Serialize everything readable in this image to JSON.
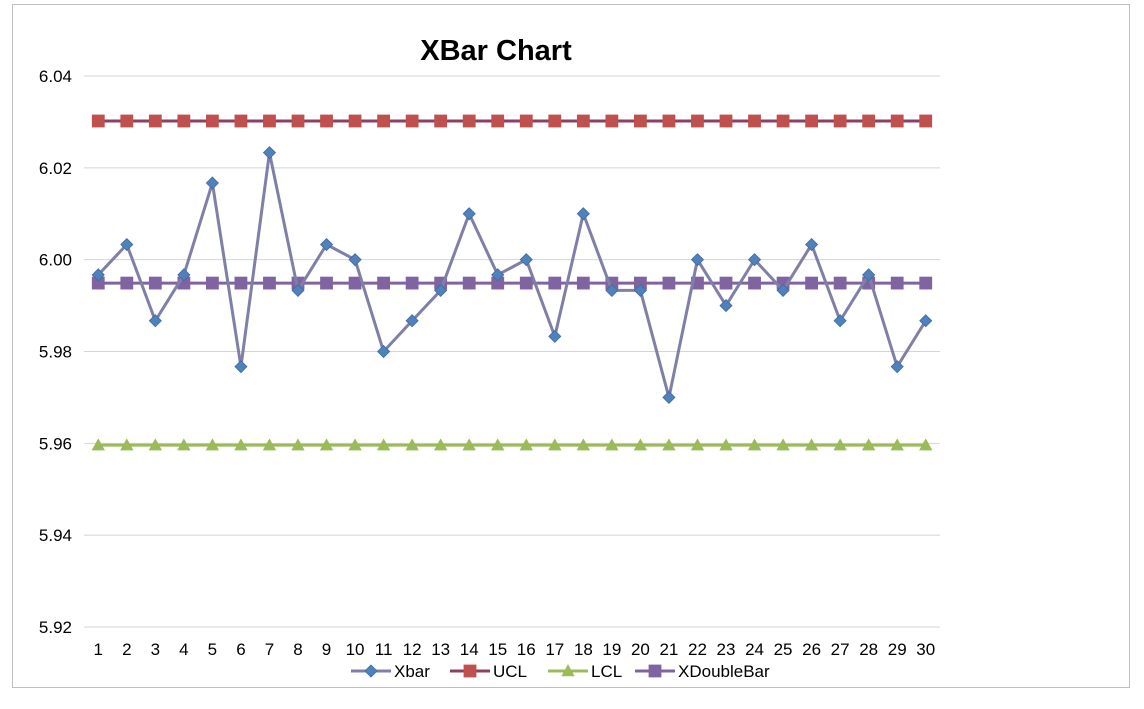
{
  "chart_data": {
    "type": "line",
    "title": "XBar Chart",
    "xlabel": "",
    "ylabel": "",
    "categories": [
      "1",
      "2",
      "3",
      "4",
      "5",
      "6",
      "7",
      "8",
      "9",
      "10",
      "11",
      "12",
      "13",
      "14",
      "15",
      "16",
      "17",
      "18",
      "19",
      "20",
      "21",
      "22",
      "23",
      "24",
      "25",
      "26",
      "27",
      "28",
      "29",
      "30"
    ],
    "ylim": [
      5.92,
      6.04
    ],
    "yticks": [
      "5.92",
      "5.94",
      "5.96",
      "5.98",
      "6.00",
      "6.02",
      "6.04"
    ],
    "grid": "horizontal",
    "legend_position": "bottom",
    "series": [
      {
        "name": "Xbar",
        "marker": "diamond",
        "color": "#4f81bd",
        "line_color": "#7f7fa8",
        "values": [
          5.9967,
          6.0033,
          5.9867,
          5.9967,
          6.0167,
          5.9767,
          6.0233,
          5.9933,
          6.0033,
          6.0,
          5.98,
          5.9867,
          5.9933,
          6.01,
          5.9967,
          6.0,
          5.9833,
          6.01,
          5.9933,
          5.9933,
          5.97,
          6.0,
          5.99,
          6.0,
          5.9933,
          6.0033,
          5.9867,
          5.9967,
          5.9767,
          5.9867
        ]
      },
      {
        "name": "UCL",
        "marker": "square",
        "color": "#c0504d",
        "line_color": "#8f3f5f",
        "values": [
          6.0302,
          6.0302,
          6.0302,
          6.0302,
          6.0302,
          6.0302,
          6.0302,
          6.0302,
          6.0302,
          6.0302,
          6.0302,
          6.0302,
          6.0302,
          6.0302,
          6.0302,
          6.0302,
          6.0302,
          6.0302,
          6.0302,
          6.0302,
          6.0302,
          6.0302,
          6.0302,
          6.0302,
          6.0302,
          6.0302,
          6.0302,
          6.0302,
          6.0302,
          6.0302
        ]
      },
      {
        "name": "LCL",
        "marker": "triangle",
        "color": "#9bbb59",
        "line_color": "#9bbb59",
        "values": [
          5.9596,
          5.9596,
          5.9596,
          5.9596,
          5.9596,
          5.9596,
          5.9596,
          5.9596,
          5.9596,
          5.9596,
          5.9596,
          5.9596,
          5.9596,
          5.9596,
          5.9596,
          5.9596,
          5.9596,
          5.9596,
          5.9596,
          5.9596,
          5.9596,
          5.9596,
          5.9596,
          5.9596,
          5.9596,
          5.9596,
          5.9596,
          5.9596,
          5.9596,
          5.9596
        ]
      },
      {
        "name": "XDoubleBar",
        "marker": "square",
        "color": "#8064a2",
        "line_color": "#8064a2",
        "values": [
          5.9949,
          5.9949,
          5.9949,
          5.9949,
          5.9949,
          5.9949,
          5.9949,
          5.9949,
          5.9949,
          5.9949,
          5.9949,
          5.9949,
          5.9949,
          5.9949,
          5.9949,
          5.9949,
          5.9949,
          5.9949,
          5.9949,
          5.9949,
          5.9949,
          5.9949,
          5.9949,
          5.9949,
          5.9949,
          5.9949,
          5.9949,
          5.9949,
          5.9949,
          5.9949
        ]
      }
    ]
  }
}
